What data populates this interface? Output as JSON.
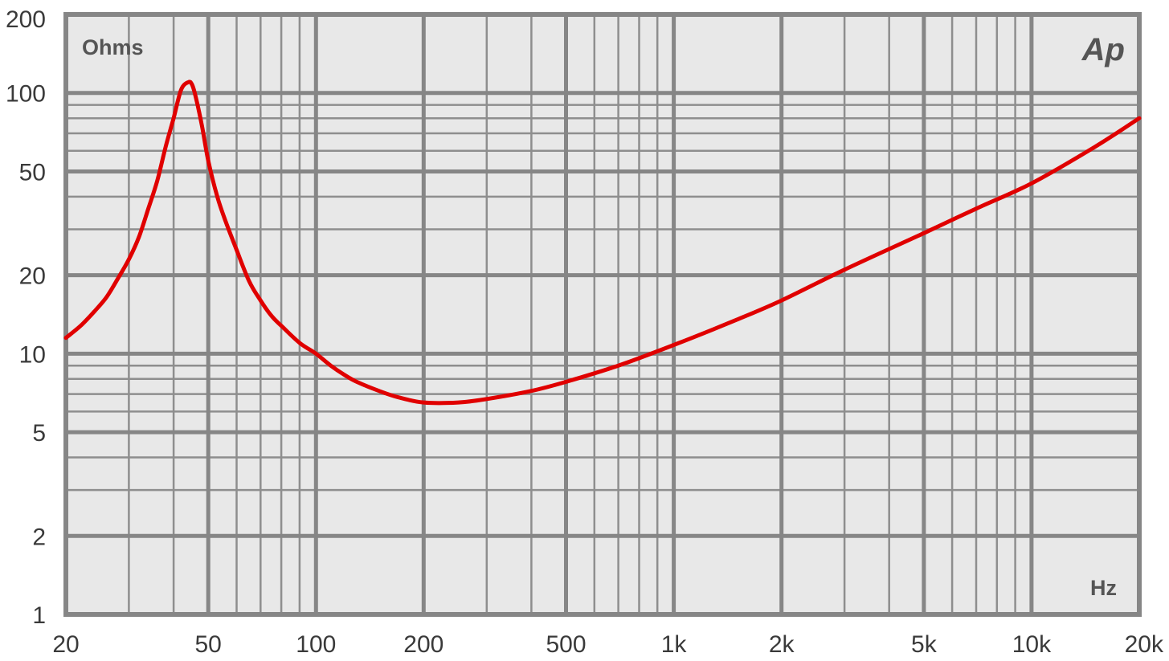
{
  "chart_data": {
    "type": "line",
    "title": "",
    "ylabel": "Ohms",
    "xlabel": "Hz",
    "xscale": "log",
    "yscale": "log",
    "xlim": [
      20,
      20000
    ],
    "ylim": [
      1,
      200
    ],
    "grid": true,
    "xticks": [
      {
        "value": 20,
        "label": "20"
      },
      {
        "value": 50,
        "label": "50"
      },
      {
        "value": 100,
        "label": "100"
      },
      {
        "value": 200,
        "label": "200"
      },
      {
        "value": 500,
        "label": "500"
      },
      {
        "value": 1000,
        "label": "1k"
      },
      {
        "value": 2000,
        "label": "2k"
      },
      {
        "value": 5000,
        "label": "5k"
      },
      {
        "value": 10000,
        "label": "10k"
      },
      {
        "value": 20000,
        "label": "20k"
      }
    ],
    "yticks": [
      {
        "value": 1,
        "label": "1"
      },
      {
        "value": 2,
        "label": "2"
      },
      {
        "value": 5,
        "label": "5"
      },
      {
        "value": 10,
        "label": "10"
      },
      {
        "value": 20,
        "label": "20"
      },
      {
        "value": 50,
        "label": "50"
      },
      {
        "value": 100,
        "label": "100"
      },
      {
        "value": 200,
        "label": "200"
      }
    ],
    "series": [
      {
        "color": "#e00000",
        "x": [
          20,
          22,
          24,
          26,
          28,
          30,
          32,
          34,
          36,
          38,
          40,
          42,
          44,
          45,
          46,
          48,
          50,
          53,
          56,
          60,
          65,
          70,
          75,
          80,
          90,
          100,
          110,
          120,
          130,
          150,
          170,
          200,
          250,
          300,
          400,
          500,
          700,
          1000,
          1500,
          2000,
          3000,
          5000,
          7000,
          10000,
          15000,
          20000
        ],
        "y": [
          11.5,
          12.8,
          14.5,
          16.5,
          19.5,
          23,
          28,
          36,
          46,
          62,
          80,
          103,
          110,
          108,
          98,
          75,
          55,
          40,
          32,
          25,
          19,
          16,
          14,
          12.8,
          11,
          10,
          9,
          8.3,
          7.8,
          7.2,
          6.8,
          6.5,
          6.5,
          6.7,
          7.2,
          7.8,
          9,
          10.8,
          13.5,
          16,
          21,
          29,
          36,
          45,
          62,
          80
        ]
      }
    ],
    "brand": "Ap"
  },
  "colors": {
    "plot_background": "#e8e8e8",
    "major_grid": "#868686",
    "minor_grid": "#8e8e8e",
    "curve": "#e00000",
    "text": "#3a3a3a"
  }
}
